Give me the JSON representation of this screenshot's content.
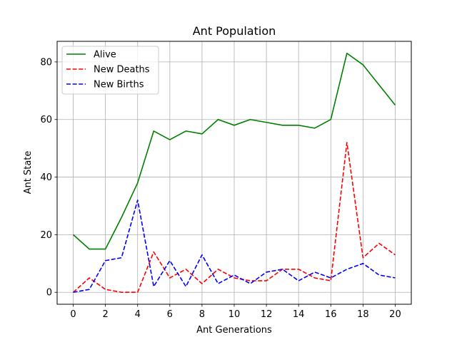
{
  "chart_data": {
    "type": "line",
    "title": "Ant Population",
    "xlabel": "Ant Generations",
    "ylabel": "Ant State",
    "x": [
      0,
      1,
      2,
      3,
      4,
      5,
      6,
      7,
      8,
      9,
      10,
      11,
      12,
      13,
      14,
      15,
      16,
      17,
      18,
      19,
      20
    ],
    "xlim": [
      -1,
      21
    ],
    "ylim": [
      -4.15,
      87.15
    ],
    "xticks": [
      0,
      2,
      4,
      6,
      8,
      10,
      12,
      14,
      16,
      18,
      20
    ],
    "yticks": [
      0,
      20,
      40,
      60,
      80
    ],
    "grid": true,
    "legend_position": "top-left",
    "series": [
      {
        "name": "Alive",
        "color": "#008000",
        "style": "solid",
        "values": [
          20,
          15,
          15,
          26,
          38,
          56,
          53,
          56,
          55,
          60,
          58,
          60,
          59,
          58,
          58,
          57,
          60,
          83,
          79,
          72,
          65
        ]
      },
      {
        "name": "New Deaths",
        "color": "#ff0000",
        "style": "dashed",
        "values": [
          0,
          5,
          1,
          0,
          0,
          14,
          5,
          8,
          3,
          8,
          5,
          4,
          4,
          8,
          8,
          5,
          4,
          52,
          12,
          17,
          13
        ]
      },
      {
        "name": "New Births",
        "color": "#0000ff",
        "style": "dashed",
        "values": [
          0,
          1,
          11,
          12,
          32,
          2,
          11,
          2,
          13,
          3,
          6,
          3,
          7,
          8,
          4,
          7,
          5,
          8,
          10,
          6,
          5
        ]
      }
    ]
  }
}
